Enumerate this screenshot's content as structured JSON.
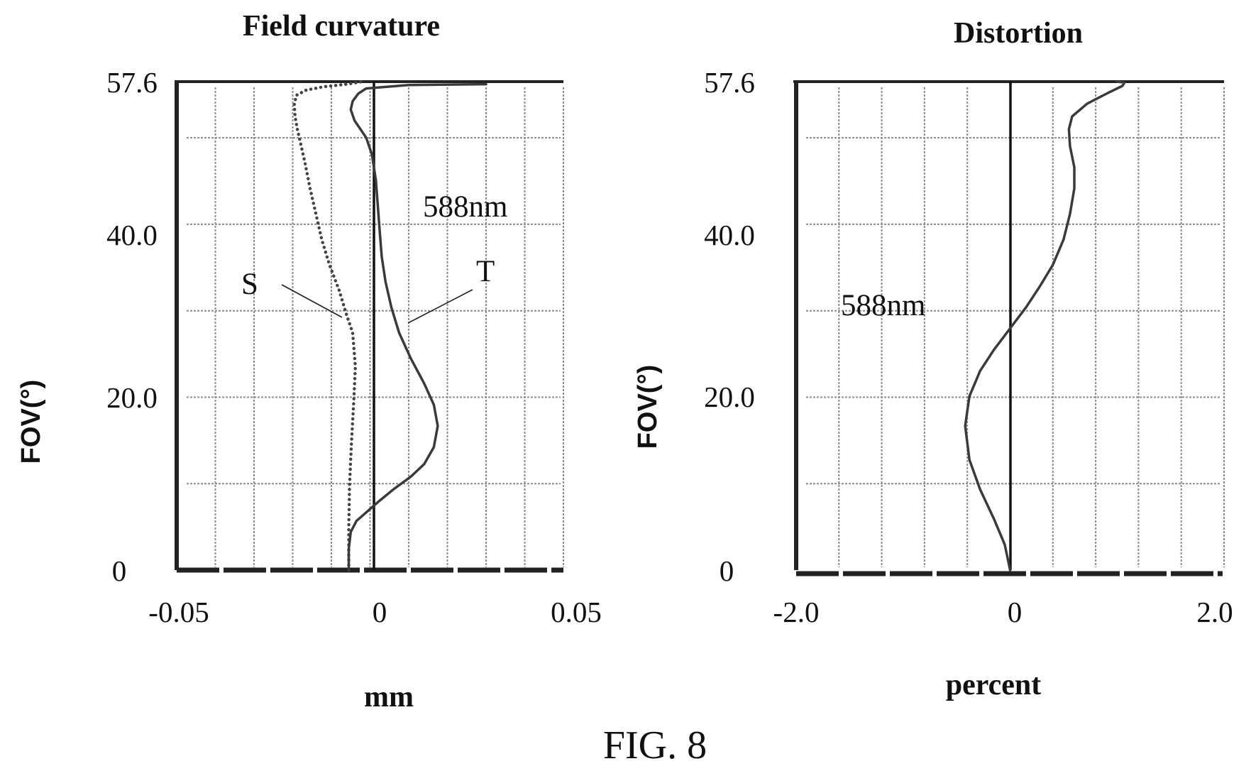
{
  "figure_caption": "FIG. 8",
  "chart_data": [
    {
      "id": "field",
      "type": "line",
      "title": "Field curvature",
      "xlabel": "mm",
      "ylabel": "FOV(°)",
      "xlim": [
        -0.05,
        0.05
      ],
      "ylim": [
        0,
        57.6
      ],
      "x_ticks": [
        "-0.05",
        "0",
        "0.05"
      ],
      "y_ticks": [
        "0",
        "20.0",
        "40.0",
        "57.6"
      ],
      "grid": true,
      "annotations": {
        "wavelength": "588nm",
        "s_label": "S",
        "t_label": "T"
      },
      "series": [
        {
          "name": "S",
          "style": "dotted",
          "x": [
            -0.0055,
            -0.0055,
            -0.0053,
            -0.0048,
            -0.0042,
            -0.0038,
            -0.0045,
            -0.006,
            -0.008,
            -0.0105,
            -0.0125,
            -0.014,
            -0.0155,
            -0.0168,
            -0.0178,
            -0.0188,
            -0.0194,
            -0.0196,
            -0.019,
            -0.0165,
            -0.012,
            -0.006,
            -0.002
          ],
          "y": [
            0,
            5,
            10,
            15,
            20,
            24,
            28,
            30,
            33,
            36,
            39,
            42,
            45,
            48,
            50,
            52,
            53.5,
            55,
            56,
            56.6,
            57,
            57.3,
            57.6
          ]
        },
        {
          "name": "T",
          "style": "solid",
          "x": [
            -0.0055,
            -0.0055,
            -0.005,
            -0.0035,
            -0.001,
            0.002,
            0.006,
            0.0105,
            0.014,
            0.0165,
            0.0175,
            0.0165,
            0.014,
            0.0105,
            0.0075,
            0.0055,
            0.004,
            0.003,
            0.0025,
            0.002,
            0.0015,
            0.0005,
            -0.001,
            -0.004,
            -0.005,
            -0.0045,
            -0.003,
            -0.001,
            0.01,
            0.03
          ],
          "y": [
            0,
            2.5,
            4.5,
            5.8,
            6.8,
            8,
            9.5,
            11,
            12.5,
            14.5,
            17,
            19.5,
            22,
            25,
            28,
            31,
            34,
            37,
            40,
            43,
            46,
            49,
            51,
            53,
            54.3,
            55.3,
            56.2,
            56.8,
            57.2,
            57.3
          ]
        }
      ]
    },
    {
      "id": "distortion",
      "type": "line",
      "title": "Distortion",
      "xlabel": "percent",
      "ylabel": "FOV(°)",
      "xlim": [
        -2.0,
        2.0
      ],
      "ylim": [
        0,
        57.6
      ],
      "x_ticks": [
        "-2.0",
        "0",
        "2.0"
      ],
      "y_ticks": [
        "0",
        "20.0",
        "40.0",
        "57.6"
      ],
      "grid": true,
      "annotations": {
        "wavelength": "588nm"
      },
      "series": [
        {
          "name": "",
          "style": "solid",
          "x": [
            0.0,
            -0.05,
            -0.15,
            -0.28,
            -0.38,
            -0.42,
            -0.38,
            -0.28,
            -0.15,
            0.0,
            0.15,
            0.28,
            0.4,
            0.5,
            0.56,
            0.6,
            0.6,
            0.56,
            0.55,
            0.58,
            0.72,
            0.92,
            1.05,
            1.07,
            1.0
          ],
          "y": [
            0,
            3,
            6,
            9.5,
            13,
            17,
            20.5,
            23.5,
            26,
            28.5,
            31,
            33.5,
            36,
            39,
            42,
            45,
            47.5,
            50,
            52,
            53.5,
            55,
            56.3,
            57.1,
            57.5,
            57.6
          ]
        }
      ]
    }
  ]
}
